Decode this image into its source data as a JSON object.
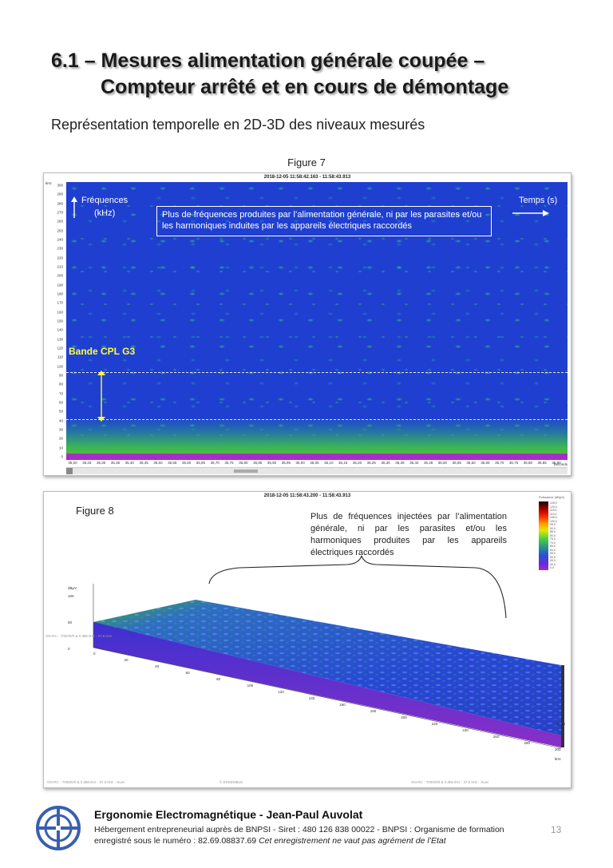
{
  "header": {
    "title_line1": "6.1 – Mesures alimentation générale coupée –",
    "title_line2": "Compteur arrêté et en cours de démontage",
    "subtitle": "Représentation temporelle en 2D-3D des niveaux mesurés"
  },
  "figure7": {
    "caption": "Figure 7",
    "timestamp": "2018-12-05 11:58:42.163 - 11:58:43.913",
    "y_unit": "kHz",
    "y_ticks": [
      "300",
      "290",
      "280",
      "270",
      "260",
      "250",
      "240",
      "230",
      "220",
      "210",
      "200",
      "190",
      "180",
      "170",
      "160",
      "150",
      "140",
      "130",
      "120",
      "110",
      "100",
      "90",
      "80",
      "70",
      "60",
      "50",
      "40",
      "30",
      "20",
      "10",
      "0"
    ],
    "x_ticks": [
      "35,20",
      "35,25",
      "35,30",
      "35,35",
      "35,40",
      "35,45",
      "35,50",
      "35,55",
      "35,60",
      "35,65",
      "35,70",
      "35,75",
      "35,80",
      "35,85",
      "35,90",
      "35,95",
      "36,00",
      "36,05",
      "36,10",
      "36,15",
      "36,20",
      "36,25",
      "36,30",
      "36,35",
      "36,40",
      "36,45",
      "36,50",
      "36,55",
      "36,60",
      "36,65",
      "36,70",
      "36,75",
      "36,80",
      "36,85",
      "36,90"
    ],
    "x_unit": "Seconds",
    "label_freq_line1": "Fréquences",
    "label_freq_line2": "(kHz)",
    "label_time": "Temps (s)",
    "callout": "Plus de fréquences produites par l’alimentation générale, ni par les parasites et/ou les harmoniques induites par les appareils électriques raccordés",
    "band_label": "Bande CPL G3",
    "colors": {
      "background": "#1f3fd0",
      "band": "#4cbe3c",
      "floor": "#a52fc4",
      "highlight": "#ffff33"
    }
  },
  "figure8": {
    "caption": "Figure 8",
    "timestamp": "2018-12-05 11:58:43.200 - 11:58:43.913",
    "callout": "Plus de fréquences injectées par l’alimentation générale, ni par les parasites et/ou les harmoniques produites par les appareils électriques raccordés",
    "z_unit": "dBμV",
    "z_ticks": [
      "100",
      "50",
      "0"
    ],
    "freq_ticks": [
      "0",
      "20",
      "40",
      "60",
      "80",
      "100",
      "120",
      "140",
      "160",
      "180",
      "200",
      "220",
      "240",
      "260",
      "280",
      "300"
    ],
    "freq_unit": "kHz",
    "time_end": "36,90",
    "legend_title": "Puissance (dBμV)",
    "legend_values": [
      "125,0",
      "120,0",
      "115,0",
      "110,0",
      "105,0",
      "100,0",
      "95,0",
      "90,0",
      "85,0",
      "80,0",
      "75,0",
      "70,0",
      "65,0",
      "60,0",
      "55,0",
      "50,0",
      "45,0",
      "40,0",
      "0,0"
    ],
    "footer_left": "ON-RC - 7000/0/0 & 0 dBm/Hz - 37.5 kHz - Suivi",
    "footer_center": "© ENSEMBLE",
    "footer_right": "ON-RC - 7000/0/0 & 0 dBm/Hz - 37.5 kHz - Suivi",
    "left_axis_note": "ON-RC - 7000/0/0 & 0 dBm/Hz - 37.5 kHz"
  },
  "footer": {
    "org": "Ergonomie Electromagnétique - Jean-Paul Auvolat",
    "line1": "Hébergement entrepreneurial auprès de BNPSI - Siret : 480 126 838 00022 - BNPSI : Organisme de formation",
    "line2_plain": "enregistré sous le numéro : 82.69.08837.69",
    "line2_italic": "Cet enregistrement ne vaut pas agrément de l’Etat",
    "page_number": "13"
  }
}
